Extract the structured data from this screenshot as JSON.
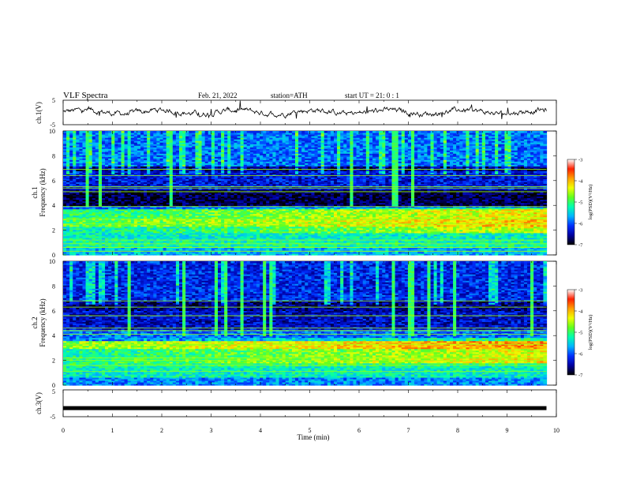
{
  "header": {
    "title": "VLF  Spectra",
    "date": "Feb. 21, 2022",
    "station": "station=ATH",
    "start_ut": "start  UT  =    21: 0   : 1"
  },
  "chart_data": {
    "type": "heatmap",
    "x_axis": {
      "label": "Time  (min)",
      "range": [
        0,
        10
      ],
      "ticks": [
        "0",
        "1",
        "2",
        "3",
        "4",
        "5",
        "6",
        "7",
        "8",
        "9",
        "10"
      ],
      "data_end_min": 9.8
    },
    "panels": [
      {
        "name": "ch1-waveform",
        "type": "line",
        "ylabel": "ch.1(V)",
        "ylim": [
          -5,
          5
        ],
        "ticks": [
          "5",
          "-5"
        ],
        "mean_value": 0.2
      },
      {
        "name": "ch1-spectrogram",
        "type": "heatmap",
        "ylabel_line1": "ch.1",
        "ylabel_line2": "Frequency (kHz)",
        "ylim": [
          0,
          10
        ],
        "ticks": [
          "0",
          "2",
          "4",
          "6",
          "8",
          "10"
        ],
        "bands": [
          {
            "f0": 0,
            "f1": 0.6,
            "level": -5.6
          },
          {
            "f0": 0.6,
            "f1": 1.2,
            "level": -5.2
          },
          {
            "f0": 1.2,
            "f1": 2.3,
            "level": -5.3
          },
          {
            "f0": 2.3,
            "f1": 3.0,
            "level": -4.9
          },
          {
            "f0": 3.0,
            "f1": 3.7,
            "level": -5.1
          },
          {
            "f0": 3.7,
            "f1": 4.0,
            "level": -6.0
          },
          {
            "f0": 4.0,
            "f1": 5.2,
            "level": -6.8
          },
          {
            "f0": 5.2,
            "f1": 6.8,
            "level": -6.3
          },
          {
            "f0": 6.8,
            "f1": 7.2,
            "level": -6.6
          },
          {
            "f0": 7.2,
            "f1": 10.0,
            "level": -5.9
          }
        ],
        "lines_khz": [
          0.3,
          0.6,
          0.9,
          1.2,
          2.5,
          2.9,
          3.9,
          5.1,
          5.4,
          5.5,
          6.4,
          6.9
        ]
      },
      {
        "name": "ch2-spectrogram",
        "type": "heatmap",
        "ylabel_line1": "ch.2",
        "ylabel_line2": "Frequency (kHz)",
        "ylim": [
          0,
          10
        ],
        "ticks": [
          "0",
          "2",
          "4",
          "6",
          "8",
          "10"
        ],
        "bands": [
          {
            "f0": 0,
            "f1": 0.6,
            "level": -5.8
          },
          {
            "f0": 0.6,
            "f1": 1.6,
            "level": -5.3
          },
          {
            "f0": 1.6,
            "f1": 2.2,
            "level": -5.1
          },
          {
            "f0": 2.2,
            "f1": 3.0,
            "level": -5.2
          },
          {
            "f0": 3.0,
            "f1": 3.6,
            "level": -4.7
          },
          {
            "f0": 3.6,
            "f1": 4.5,
            "level": -5.9
          },
          {
            "f0": 4.5,
            "f1": 6.0,
            "level": -6.4
          },
          {
            "f0": 6.0,
            "f1": 6.8,
            "level": -6.6
          },
          {
            "f0": 6.8,
            "f1": 10.0,
            "level": -6.2
          }
        ],
        "lines_khz": [
          1.1,
          1.6,
          2.0,
          2.2,
          3.3,
          4.1,
          4.4,
          4.6,
          5.6,
          6.3,
          6.8
        ]
      },
      {
        "name": "ch3-waveform",
        "type": "line",
        "ylabel": "ch.3(V)",
        "ylim": [
          -5,
          5
        ],
        "ticks": [
          "5",
          "-5"
        ],
        "mean_value": -1.8
      }
    ],
    "colorbar": {
      "label": "log(PSD)(V²/Hz)",
      "range": [
        -7,
        -3
      ],
      "ticks": [
        "-3",
        "-4",
        "-5",
        "-6",
        "-7"
      ],
      "colors": [
        "#000000",
        "#0000a0",
        "#0030ff",
        "#00b4ff",
        "#00ffb0",
        "#60ff20",
        "#f0ff00",
        "#ffa000",
        "#ff2000",
        "#ffffff"
      ]
    }
  }
}
